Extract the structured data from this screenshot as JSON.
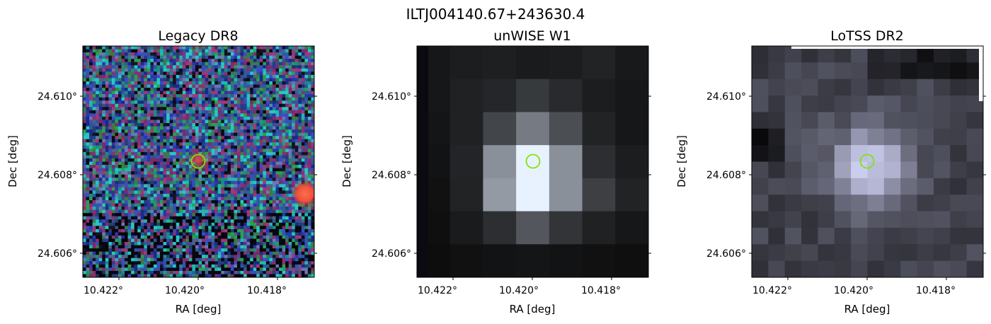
{
  "figure": {
    "suptitle": "ILTJ004140.67+243630.4"
  },
  "panels": [
    {
      "title": "Legacy DR8",
      "xlabel": "RA [deg]",
      "ylabel": "Dec [deg]",
      "xticks": [
        "10.422°",
        "10.420°",
        "10.418°"
      ],
      "yticks": [
        "24.610°",
        "24.608°",
        "24.606°"
      ],
      "image": "noisy RGB optical cutout with faint red source near center and bright red source at right edge",
      "marker_color": "#7fe600"
    },
    {
      "title": "unWISE W1",
      "xlabel": "RA [deg]",
      "ylabel": "Dec [deg]",
      "xticks": [
        "10.422°",
        "10.420°",
        "10.418°"
      ],
      "yticks": [
        "24.610°",
        "24.608°",
        "24.606°"
      ],
      "image": "coarse-pixel greyscale infrared cutout with bright central source",
      "marker_color": "#7fe600"
    },
    {
      "title": "LoTSS DR2",
      "xlabel": "RA [deg]",
      "ylabel": "Dec [deg]",
      "xticks": [
        "10.422°",
        "10.420°",
        "10.418°"
      ],
      "yticks": [
        "24.610°",
        "24.608°",
        "24.606°"
      ],
      "image": "blocky blue-grey radio cutout with bright central source",
      "marker_color": "#7fe600"
    }
  ]
}
